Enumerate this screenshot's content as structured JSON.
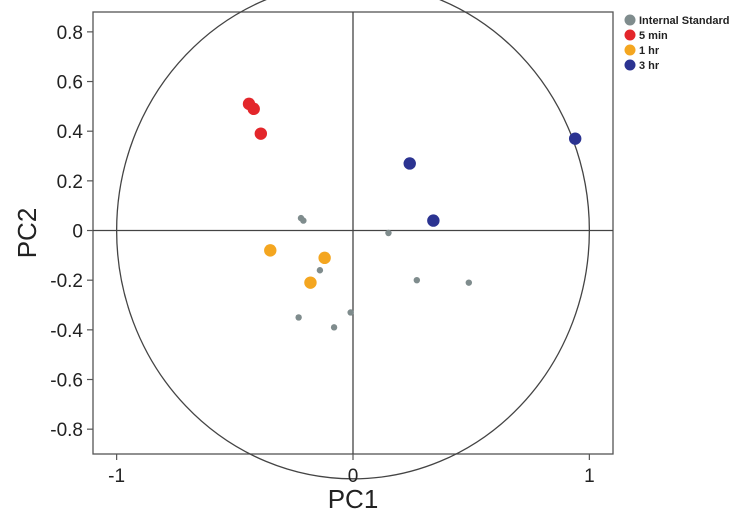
{
  "chart_data": {
    "type": "scatter",
    "title": "",
    "xlabel": "PC1",
    "ylabel": "PC2",
    "xlim": [
      -1.1,
      1.1
    ],
    "ylim": [
      -0.9,
      0.88
    ],
    "x_ticks": [
      -1,
      0,
      1
    ],
    "x_tick_labels": [
      "-1",
      "0",
      "1"
    ],
    "y_ticks": [
      0.8,
      0.6,
      0.4,
      0.2,
      0,
      -0.2,
      -0.4,
      -0.6,
      -0.8
    ],
    "y_tick_labels": [
      "0.8",
      "0.6",
      "0.4",
      "0.2",
      "0",
      "-0.2",
      "-0.4",
      "-0.6",
      "-0.8"
    ],
    "grid": false,
    "legend_position": "top-right outside",
    "reference_circle": {
      "cx": 0,
      "cy": 0,
      "r": 1
    },
    "series": [
      {
        "name": "Internal Standard",
        "color": "#7f8c8d",
        "marker": "small",
        "points": [
          [
            -0.22,
            0.05
          ],
          [
            -0.21,
            0.04
          ],
          [
            0.15,
            -0.01
          ],
          [
            -0.14,
            -0.16
          ],
          [
            0.27,
            -0.2
          ],
          [
            0.49,
            -0.21
          ],
          [
            -0.23,
            -0.35
          ],
          [
            -0.08,
            -0.39
          ],
          [
            -0.01,
            -0.33
          ]
        ]
      },
      {
        "name": "5 min",
        "color": "#e3262b",
        "marker": "large",
        "points": [
          [
            -0.44,
            0.51
          ],
          [
            -0.42,
            0.49
          ],
          [
            -0.39,
            0.39
          ]
        ]
      },
      {
        "name": "1 hr",
        "color": "#f4a620",
        "marker": "large",
        "points": [
          [
            -0.35,
            -0.08
          ],
          [
            -0.12,
            -0.11
          ],
          [
            -0.18,
            -0.21
          ]
        ]
      },
      {
        "name": "3 hr",
        "color": "#2b3391",
        "marker": "large",
        "points": [
          [
            0.24,
            0.27
          ],
          [
            0.34,
            0.04
          ],
          [
            0.94,
            0.37
          ]
        ]
      }
    ]
  }
}
